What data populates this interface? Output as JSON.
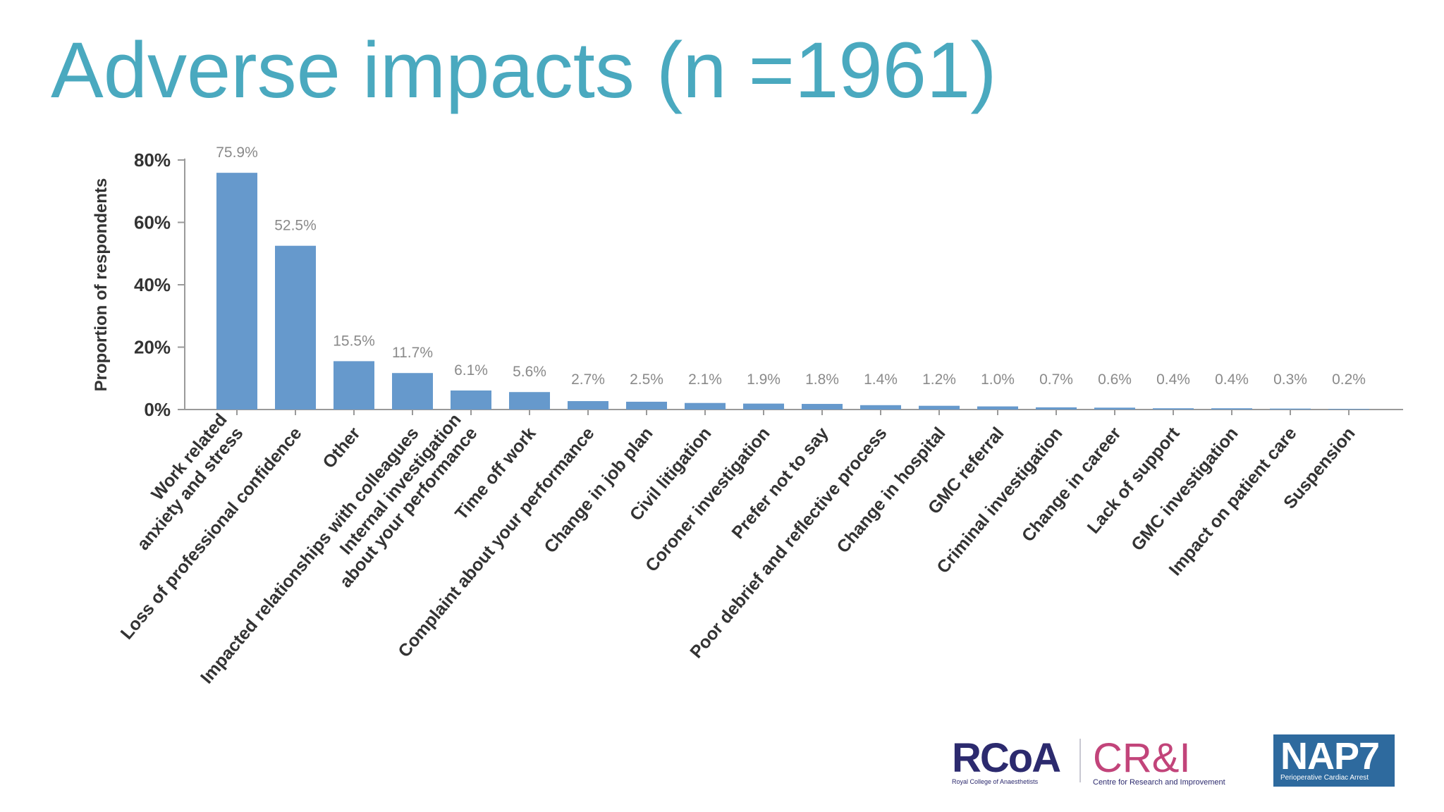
{
  "slide": {
    "title": "Adverse impacts (n =1961)"
  },
  "chart_data": {
    "type": "bar",
    "title": "",
    "xlabel": "",
    "ylabel": "Proportion of respondents",
    "ylim": [
      0,
      80
    ],
    "yticks": [
      "0%",
      "20%",
      "40%",
      "60%",
      "80%"
    ],
    "bar_color": "#6699cc",
    "categories": [
      [
        "Work related",
        "anxiety and stress"
      ],
      [
        "Loss of professional confidence"
      ],
      [
        "Other"
      ],
      [
        "Impacted relationships with colleagues"
      ],
      [
        "Internal investigation",
        "about your performance"
      ],
      [
        "Time off work"
      ],
      [
        "Complaint about your performance"
      ],
      [
        "Change in job plan"
      ],
      [
        "Civil litigation"
      ],
      [
        "Coroner investigation"
      ],
      [
        "Prefer not to say"
      ],
      [
        "Poor debrief and reflective process"
      ],
      [
        "Change in hospital"
      ],
      [
        "GMC referral"
      ],
      [
        "Criminal investigation"
      ],
      [
        "Change in career"
      ],
      [
        "Lack of support"
      ],
      [
        "GMC investigation"
      ],
      [
        "Impact on patient care"
      ],
      [
        "Suspension"
      ]
    ],
    "values": [
      75.9,
      52.5,
      15.5,
      11.7,
      6.1,
      5.6,
      2.7,
      2.5,
      2.1,
      1.9,
      1.8,
      1.4,
      1.2,
      1.0,
      0.7,
      0.6,
      0.4,
      0.4,
      0.3,
      0.2
    ],
    "labels": [
      "75.9%",
      "52.5%",
      "15.5%",
      "11.7%",
      "6.1%",
      "5.6%",
      "2.7%",
      "2.5%",
      "2.1%",
      "1.9%",
      "1.8%",
      "1.4%",
      "1.2%",
      "1.0%",
      "0.7%",
      "0.6%",
      "0.4%",
      "0.4%",
      "0.3%",
      "0.2%"
    ]
  },
  "logos": {
    "rcoa": {
      "mark": "RCoA",
      "sub": "Royal College of Anaesthetists"
    },
    "cri": {
      "mark": "CR&I",
      "sub": "Centre for Research and Improvement"
    },
    "nap7": {
      "mark": "NAP7",
      "sub": "Perioperative Cardiac Arrest"
    }
  }
}
